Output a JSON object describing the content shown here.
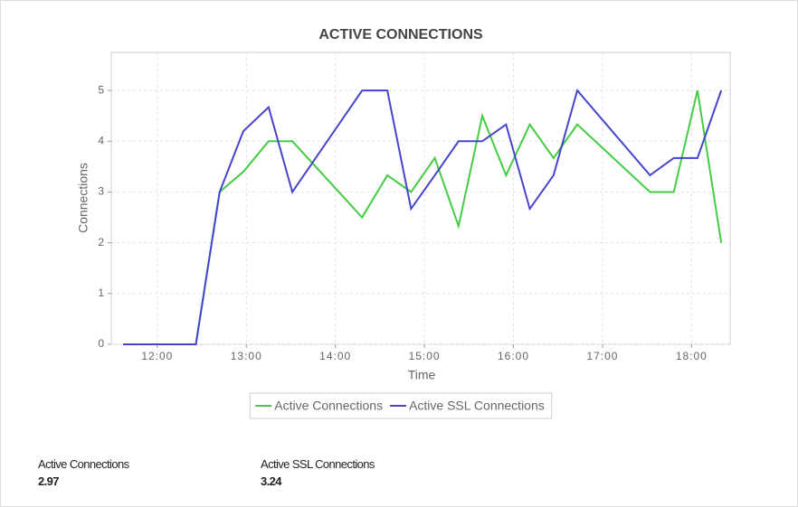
{
  "chart_data": {
    "type": "line",
    "title": "ACTIVE CONNECTIONS",
    "x_label": "Time",
    "y_label": "Connections",
    "x": [
      "11:37",
      "12:26",
      "12:42",
      "12:58",
      "13:15",
      "13:31",
      "14:18",
      "14:35",
      "14:51",
      "15:07",
      "15:23",
      "15:39",
      "15:55",
      "16:11",
      "16:27",
      "16:43",
      "17:32",
      "17:48",
      "18:04",
      "18:20"
    ],
    "series": [
      {
        "name": "Active Connections",
        "color": "#44cc44",
        "values": [
          0,
          0,
          3,
          3.4,
          4,
          4,
          2.5,
          3.33,
          3,
          3.67,
          2.33,
          4.5,
          3.33,
          4.33,
          3.67,
          4.33,
          3,
          3,
          5,
          2
        ]
      },
      {
        "name": "Active SSL Connections",
        "color": "#4444cc",
        "values": [
          0,
          0,
          3,
          4.2,
          4.67,
          3,
          5,
          5,
          2.67,
          3.33,
          4,
          4,
          4.33,
          2.67,
          3.33,
          5,
          3.33,
          3.67,
          3.67,
          5
        ]
      }
    ],
    "xlim": [
      "11:29",
      "18:26"
    ],
    "xticks": [
      "12:00",
      "13:00",
      "14:00",
      "15:00",
      "16:00",
      "17:00",
      "18:00"
    ],
    "ylim": [
      0,
      5.75
    ],
    "yticks": [
      0,
      1,
      2,
      3,
      4,
      5
    ],
    "grid": true,
    "legend": "bottom"
  },
  "summary": [
    {
      "label": "Active Connections",
      "value": "2.97"
    },
    {
      "label": "Active SSL Connections",
      "value": "3.24"
    }
  ]
}
